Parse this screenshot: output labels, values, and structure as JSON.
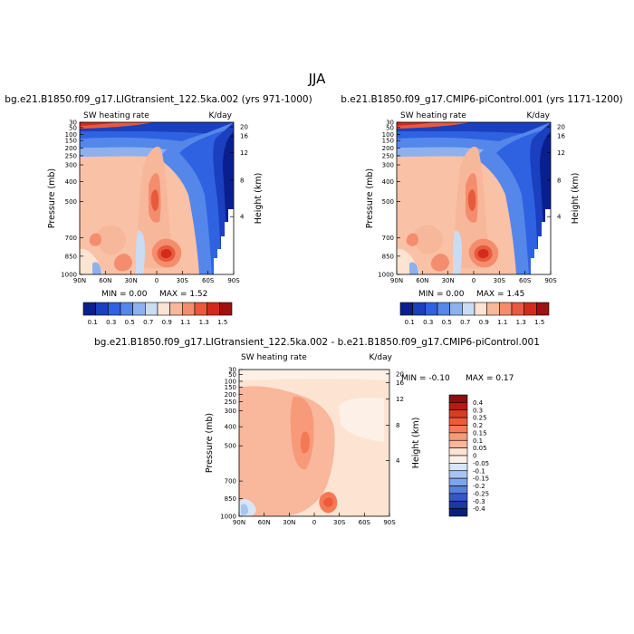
{
  "figure": {
    "title": "JJA",
    "colorbar_full_labels": [
      "0.1",
      "0.3",
      "0.5",
      "0.7",
      "0.9",
      "1.1",
      "1.3",
      "1.5"
    ],
    "colorbar_full_colors": [
      "#0a1f8f",
      "#1a3fbf",
      "#2f62e0",
      "#5586ea",
      "#8eb1ee",
      "#c9dcf4",
      "#fde3d2",
      "#f7b79b",
      "#f48d6e",
      "#e85a3d",
      "#d42a1c",
      "#a11010"
    ],
    "colorbar_diff_labels": [
      "0.4",
      "0.3",
      "0.25",
      "0.2",
      "0.15",
      "0.1",
      "0.05",
      "0",
      "-0.05",
      "-0.1",
      "-0.15",
      "-0.2",
      "-0.25",
      "-0.3",
      "-0.4"
    ],
    "colorbar_diff_colors": [
      "#8a0f0f",
      "#b81a12",
      "#d93d22",
      "#ee5a3a",
      "#f47a55",
      "#f79a7a",
      "#f9b79c",
      "#fde3d2",
      "#fdf0e6",
      "#d6e6f7",
      "#a9c5ef",
      "#7ea4ea",
      "#567fe0",
      "#3457c8",
      "#1d37a4",
      "#0a1f7a"
    ]
  },
  "chart_data": [
    {
      "type": "heatmap",
      "title": "bg.e21.B1850.f09_g17.LIGtransient_122.5ka.002 (yrs 971-1000)",
      "subtitle_left": "SW heating rate",
      "subtitle_right": "K/day",
      "xlabel": "",
      "x_tick_labels": [
        "90N",
        "60N",
        "30N",
        "0",
        "30S",
        "60S",
        "90S"
      ],
      "ylabel": "Pressure (mb)",
      "y_tick_labels": [
        "1000",
        "850",
        "700",
        "500",
        "400",
        "300",
        "250",
        "200",
        "150",
        "100",
        "50",
        "30"
      ],
      "ylabel_right": "Height (km)",
      "y_right_tick_labels": [
        "20",
        "16",
        "12",
        "8",
        "4"
      ],
      "min_text": "MIN =    0.00",
      "max_text": "MAX =    1.52",
      "min": 0.0,
      "max": 1.52,
      "units": "K/day"
    },
    {
      "type": "heatmap",
      "title": "b.e21.B1850.f09_g17.CMIP6-piControl.001 (yrs 1171-1200)",
      "subtitle_left": "SW heating rate",
      "subtitle_right": "K/day",
      "xlabel": "",
      "x_tick_labels": [
        "90N",
        "60N",
        "30N",
        "0",
        "30S",
        "60S",
        "90S"
      ],
      "ylabel": "Pressure (mb)",
      "y_tick_labels": [
        "1000",
        "850",
        "700",
        "500",
        "400",
        "300",
        "250",
        "200",
        "150",
        "100",
        "50",
        "30"
      ],
      "ylabel_right": "Height (km)",
      "y_right_tick_labels": [
        "20",
        "16",
        "12",
        "8",
        "4"
      ],
      "min_text": "MIN =    0.00",
      "max_text": "MAX =    1.45",
      "min": 0.0,
      "max": 1.45,
      "units": "K/day"
    },
    {
      "type": "heatmap",
      "title": "bg.e21.B1850.f09_g17.LIGtransient_122.5ka.002 - b.e21.B1850.f09_g17.CMIP6-piControl.001",
      "subtitle_left": "SW heating rate",
      "subtitle_right": "K/day",
      "xlabel": "",
      "x_tick_labels": [
        "90N",
        "60N",
        "30N",
        "0",
        "30S",
        "60S",
        "90S"
      ],
      "ylabel": "Pressure (mb)",
      "y_tick_labels": [
        "1000",
        "850",
        "700",
        "500",
        "400",
        "300",
        "250",
        "200",
        "150",
        "100",
        "50",
        "30"
      ],
      "ylabel_right": "Height (km)",
      "y_right_tick_labels": [
        "20",
        "16",
        "12",
        "8",
        "4"
      ],
      "min_text": "MIN =   -0.10",
      "max_text": "MAX =    0.17",
      "min": -0.1,
      "max": 0.17,
      "units": "K/day"
    }
  ]
}
